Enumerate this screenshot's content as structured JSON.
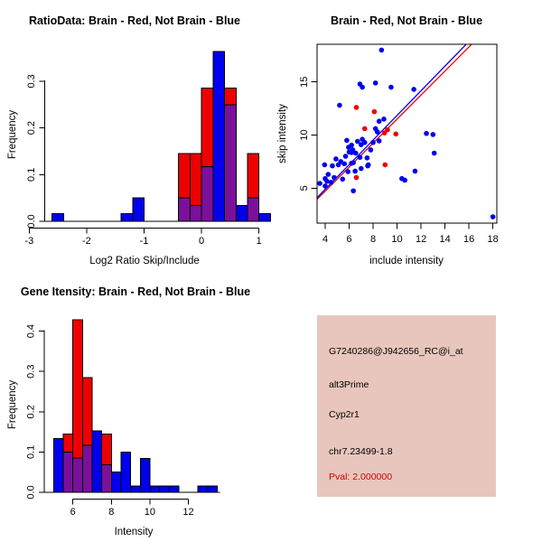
{
  "figure": {
    "background": "#ffffff",
    "accent_red": "#ee0000",
    "accent_blue": "#0000ee",
    "overlap_purple": "#7b109b"
  },
  "info_box": {
    "background": "#e8c6bd",
    "lines": [
      {
        "name": "probe-id",
        "text": "G7240286@J942656_RC@i_at",
        "color": "#000000"
      },
      {
        "name": "splice-type",
        "text": "alt3Prime",
        "color": "#000000"
      },
      {
        "name": "gene-name",
        "text": "Cyp2r1",
        "color": "#000000"
      },
      {
        "name": "locus",
        "text": "chr7.23499-1.8",
        "color": "#000000"
      },
      {
        "name": "pval",
        "text": "Pval: 2.000000",
        "color": "#cc0000"
      }
    ]
  },
  "chart_data": [
    {
      "id": "log2_ratio_histogram",
      "type": "histogram-overlay",
      "title": "RatioData: Brain - Red, Not Brain - Blue",
      "xlabel": "Log2 Ratio Skip/Include",
      "ylabel": "Frequency",
      "bin_width": 0.2,
      "xlim": [
        -3.05,
        1.35
      ],
      "ylim": [
        0,
        0.37
      ],
      "xticks": [
        -3,
        -2,
        -1,
        0,
        1
      ],
      "yticks": [
        {
          "v": 0,
          "label": "0.0"
        },
        {
          "v": 0.1,
          "label": "0.1"
        },
        {
          "v": 0.2,
          "label": "0.2"
        },
        {
          "v": 0.3,
          "label": "0.3"
        }
      ],
      "series": [
        {
          "name": "Brain",
          "color": "#ee0000",
          "bins": [
            {
              "x": -0.4,
              "h": 0.145
            },
            {
              "x": -0.2,
              "h": 0.145
            },
            {
              "x": 0.0,
              "h": 0.285
            },
            {
              "x": 0.4,
              "h": 0.285
            },
            {
              "x": 0.8,
              "h": 0.145
            }
          ]
        },
        {
          "name": "Not Brain",
          "color": "#0000ee",
          "bins": [
            {
              "x": -2.6,
              "h": 0.016
            },
            {
              "x": -1.4,
              "h": 0.016
            },
            {
              "x": -1.2,
              "h": 0.05
            },
            {
              "x": -0.4,
              "h": 0.05
            },
            {
              "x": -0.2,
              "h": 0.034
            },
            {
              "x": 0.0,
              "h": 0.117
            },
            {
              "x": 0.2,
              "h": 0.364
            },
            {
              "x": 0.4,
              "h": 0.25
            },
            {
              "x": 0.6,
              "h": 0.034
            },
            {
              "x": 0.8,
              "h": 0.05
            },
            {
              "x": 1.0,
              "h": 0.016
            }
          ]
        }
      ],
      "overlap_color": "#7b109b"
    },
    {
      "id": "intensity_scatter",
      "type": "scatter",
      "title": "Brain - Red, Not Brain - Blue",
      "xlabel": "include intensity",
      "ylabel": "skip intensity",
      "xlim": [
        3.32,
        18.32
      ],
      "ylim": [
        1.73,
        18.52
      ],
      "xticks": [
        4,
        6,
        8,
        10,
        12,
        14,
        16,
        18
      ],
      "yticks": [
        5,
        10,
        15
      ],
      "series": [
        {
          "name": "Not Brain",
          "color": "#0000ee",
          "points": [
            [
              8.7,
              18.0
            ],
            [
              6.9,
              14.8
            ],
            [
              7.1,
              14.5
            ],
            [
              8.2,
              14.9
            ],
            [
              9.5,
              14.5
            ],
            [
              11.4,
              14.3
            ],
            [
              5.2,
              12.8
            ],
            [
              8.9,
              11.5
            ],
            [
              8.5,
              11.3
            ],
            [
              8.2,
              10.6
            ],
            [
              8.35,
              10.3
            ],
            [
              12.45,
              10.15
            ],
            [
              13.0,
              10.05
            ],
            [
              7.1,
              9.6
            ],
            [
              5.8,
              9.5
            ],
            [
              8.5,
              9.45
            ],
            [
              6.7,
              9.4
            ],
            [
              7.3,
              9.3
            ],
            [
              8.0,
              9.3
            ],
            [
              7.0,
              9.1
            ],
            [
              6.2,
              9.05
            ],
            [
              5.95,
              8.85
            ],
            [
              7.8,
              8.6
            ],
            [
              6.3,
              8.6
            ],
            [
              6.0,
              8.4
            ],
            [
              6.2,
              8.35
            ],
            [
              6.55,
              8.3
            ],
            [
              13.1,
              8.3
            ],
            [
              5.7,
              8.0
            ],
            [
              6.9,
              7.9
            ],
            [
              7.5,
              7.85
            ],
            [
              4.9,
              7.75
            ],
            [
              5.3,
              7.5
            ],
            [
              6.35,
              7.4
            ],
            [
              6.2,
              7.35
            ],
            [
              5.6,
              7.3
            ],
            [
              3.95,
              7.2
            ],
            [
              5.1,
              7.2
            ],
            [
              7.6,
              7.2
            ],
            [
              4.6,
              7.1
            ],
            [
              7.55,
              7.1
            ],
            [
              7.0,
              6.85
            ],
            [
              6.5,
              6.6
            ],
            [
              11.5,
              6.6
            ],
            [
              5.9,
              6.55
            ],
            [
              4.25,
              6.3
            ],
            [
              4.75,
              6.0
            ],
            [
              4.0,
              5.9
            ],
            [
              10.4,
              5.9
            ],
            [
              5.45,
              5.85
            ],
            [
              10.65,
              5.75
            ],
            [
              4.15,
              5.65
            ],
            [
              4.5,
              5.55
            ],
            [
              3.55,
              5.45
            ],
            [
              4.0,
              5.2
            ],
            [
              6.35,
              4.75
            ],
            [
              18.0,
              2.3
            ]
          ]
        },
        {
          "name": "Brain",
          "color": "#ee0000",
          "points": [
            [
              6.6,
              12.6
            ],
            [
              8.1,
              12.2
            ],
            [
              7.3,
              10.6
            ],
            [
              9.2,
              10.5
            ],
            [
              8.95,
              10.2
            ],
            [
              9.9,
              10.1
            ],
            [
              9.0,
              7.2
            ],
            [
              6.6,
              6.0
            ]
          ]
        }
      ],
      "lines": [
        {
          "name": "brain-fit",
          "color": "#ee0000",
          "from": [
            3.32,
            3.95
          ],
          "to": [
            16.2,
            18.52
          ]
        },
        {
          "name": "not-brain-fit",
          "color": "#0000ee",
          "from": [
            3.32,
            4.1
          ],
          "to": [
            15.75,
            18.52
          ]
        }
      ]
    },
    {
      "id": "gene_intensity_histogram",
      "type": "histogram-overlay",
      "title": "Gene Itensity: Brain - Red, Not Brain - Blue",
      "xlabel": "Intensity",
      "ylabel": "Frequency",
      "bin_width": 0.5,
      "xlim": [
        4.9,
        13.7
      ],
      "ylim": [
        0,
        0.44
      ],
      "xticks": [
        6,
        8,
        10,
        12
      ],
      "yticks": [
        {
          "v": 0,
          "label": "0.0"
        },
        {
          "v": 0.1,
          "label": "0.1"
        },
        {
          "v": 0.2,
          "label": "0.2"
        },
        {
          "v": 0.3,
          "label": "0.3"
        },
        {
          "v": 0.4,
          "label": "0.4"
        }
      ],
      "series": [
        {
          "name": "Brain",
          "color": "#ee0000",
          "bins": [
            {
              "x": 5.5,
              "h": 0.145
            },
            {
              "x": 6.0,
              "h": 0.428
            },
            {
              "x": 6.5,
              "h": 0.285
            },
            {
              "x": 7.5,
              "h": 0.145
            }
          ]
        },
        {
          "name": "Not Brain",
          "color": "#0000ee",
          "bins": [
            {
              "x": 5.0,
              "h": 0.133
            },
            {
              "x": 5.5,
              "h": 0.1
            },
            {
              "x": 6.0,
              "h": 0.085
            },
            {
              "x": 6.5,
              "h": 0.117
            },
            {
              "x": 7.0,
              "h": 0.152
            },
            {
              "x": 7.5,
              "h": 0.068
            },
            {
              "x": 8.0,
              "h": 0.05
            },
            {
              "x": 8.5,
              "h": 0.1
            },
            {
              "x": 9.0,
              "h": 0.016
            },
            {
              "x": 9.5,
              "h": 0.084
            },
            {
              "x": 10.0,
              "h": 0.016
            },
            {
              "x": 10.5,
              "h": 0.016
            },
            {
              "x": 11.0,
              "h": 0.016
            },
            {
              "x": 12.5,
              "h": 0.016
            },
            {
              "x": 13.0,
              "h": 0.016
            }
          ]
        }
      ],
      "overlap_color": "#7b109b"
    }
  ]
}
